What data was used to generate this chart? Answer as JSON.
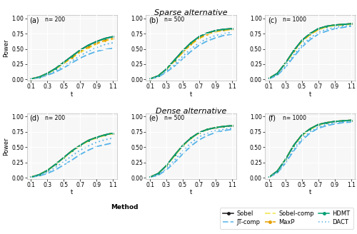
{
  "tau": [
    0.1,
    0.2,
    0.3,
    0.4,
    0.5,
    0.6,
    0.7,
    0.8,
    0.9,
    1.0,
    1.1
  ],
  "sparse": {
    "n200": {
      "Sobel": [
        0.01,
        0.04,
        0.1,
        0.18,
        0.28,
        0.38,
        0.48,
        0.56,
        0.62,
        0.67,
        0.7
      ],
      "JT-comp": [
        0.01,
        0.03,
        0.07,
        0.12,
        0.19,
        0.27,
        0.35,
        0.41,
        0.46,
        0.49,
        0.51
      ],
      "Sobel-comp": [
        0.01,
        0.04,
        0.09,
        0.17,
        0.26,
        0.35,
        0.44,
        0.51,
        0.58,
        0.63,
        0.66
      ],
      "MaxP": [
        0.01,
        0.04,
        0.1,
        0.18,
        0.27,
        0.36,
        0.46,
        0.53,
        0.59,
        0.64,
        0.67
      ],
      "HDMT": [
        0.01,
        0.04,
        0.1,
        0.18,
        0.28,
        0.38,
        0.48,
        0.56,
        0.62,
        0.67,
        0.7
      ],
      "DACT": [
        0.01,
        0.03,
        0.08,
        0.14,
        0.22,
        0.3,
        0.39,
        0.46,
        0.52,
        0.57,
        0.6
      ]
    },
    "n500": {
      "Sobel": [
        0.01,
        0.06,
        0.17,
        0.32,
        0.47,
        0.6,
        0.7,
        0.76,
        0.8,
        0.82,
        0.83
      ],
      "JT-comp": [
        0.01,
        0.04,
        0.12,
        0.22,
        0.34,
        0.46,
        0.56,
        0.63,
        0.68,
        0.72,
        0.74
      ],
      "Sobel-comp": [
        0.01,
        0.06,
        0.16,
        0.3,
        0.44,
        0.57,
        0.67,
        0.73,
        0.78,
        0.8,
        0.82
      ],
      "MaxP": [
        0.01,
        0.06,
        0.17,
        0.31,
        0.45,
        0.58,
        0.68,
        0.74,
        0.79,
        0.81,
        0.82
      ],
      "HDMT": [
        0.01,
        0.06,
        0.17,
        0.32,
        0.47,
        0.6,
        0.7,
        0.76,
        0.8,
        0.82,
        0.83
      ],
      "DACT": [
        0.01,
        0.05,
        0.13,
        0.25,
        0.38,
        0.5,
        0.6,
        0.67,
        0.72,
        0.75,
        0.77
      ]
    },
    "n1000": {
      "Sobel": [
        0.02,
        0.1,
        0.27,
        0.47,
        0.64,
        0.75,
        0.83,
        0.87,
        0.89,
        0.9,
        0.91
      ],
      "JT-comp": [
        0.01,
        0.07,
        0.2,
        0.37,
        0.53,
        0.65,
        0.74,
        0.79,
        0.83,
        0.85,
        0.87
      ],
      "Sobel-comp": [
        0.02,
        0.1,
        0.26,
        0.45,
        0.62,
        0.73,
        0.81,
        0.86,
        0.88,
        0.89,
        0.9
      ],
      "MaxP": [
        0.02,
        0.1,
        0.27,
        0.46,
        0.63,
        0.74,
        0.82,
        0.87,
        0.89,
        0.9,
        0.91
      ],
      "HDMT": [
        0.02,
        0.1,
        0.27,
        0.47,
        0.64,
        0.75,
        0.83,
        0.87,
        0.89,
        0.9,
        0.91
      ],
      "DACT": [
        0.01,
        0.08,
        0.22,
        0.4,
        0.56,
        0.68,
        0.77,
        0.82,
        0.85,
        0.87,
        0.88
      ]
    }
  },
  "dense": {
    "n200": {
      "Sobel": [
        0.01,
        0.05,
        0.12,
        0.22,
        0.33,
        0.44,
        0.53,
        0.61,
        0.66,
        0.7,
        0.73
      ],
      "JT-comp": [
        0.01,
        0.03,
        0.07,
        0.13,
        0.21,
        0.29,
        0.38,
        0.45,
        0.51,
        0.54,
        0.57
      ],
      "Sobel-comp": [
        0.01,
        0.05,
        0.12,
        0.21,
        0.32,
        0.43,
        0.52,
        0.6,
        0.65,
        0.69,
        0.72
      ],
      "MaxP": [
        0.01,
        0.05,
        0.12,
        0.22,
        0.33,
        0.44,
        0.53,
        0.61,
        0.66,
        0.7,
        0.73
      ],
      "HDMT": [
        0.01,
        0.05,
        0.12,
        0.22,
        0.33,
        0.44,
        0.53,
        0.61,
        0.66,
        0.7,
        0.73
      ],
      "DACT": [
        0.01,
        0.04,
        0.09,
        0.17,
        0.26,
        0.36,
        0.45,
        0.52,
        0.58,
        0.62,
        0.65
      ]
    },
    "n500": {
      "Sobel": [
        0.01,
        0.07,
        0.2,
        0.37,
        0.53,
        0.65,
        0.74,
        0.79,
        0.82,
        0.84,
        0.85
      ],
      "JT-comp": [
        0.01,
        0.04,
        0.13,
        0.25,
        0.39,
        0.52,
        0.62,
        0.69,
        0.74,
        0.77,
        0.79
      ],
      "Sobel-comp": [
        0.01,
        0.07,
        0.19,
        0.36,
        0.52,
        0.64,
        0.73,
        0.79,
        0.82,
        0.84,
        0.85
      ],
      "MaxP": [
        0.01,
        0.07,
        0.2,
        0.37,
        0.53,
        0.65,
        0.74,
        0.79,
        0.82,
        0.84,
        0.85
      ],
      "HDMT": [
        0.01,
        0.07,
        0.2,
        0.37,
        0.53,
        0.65,
        0.74,
        0.79,
        0.82,
        0.84,
        0.85
      ],
      "DACT": [
        0.01,
        0.05,
        0.15,
        0.29,
        0.44,
        0.57,
        0.67,
        0.73,
        0.77,
        0.79,
        0.81
      ]
    },
    "n1000": {
      "Sobel": [
        0.01,
        0.11,
        0.3,
        0.53,
        0.7,
        0.8,
        0.87,
        0.9,
        0.92,
        0.93,
        0.94
      ],
      "JT-comp": [
        0.01,
        0.08,
        0.24,
        0.44,
        0.61,
        0.73,
        0.81,
        0.85,
        0.88,
        0.9,
        0.91
      ],
      "Sobel-comp": [
        0.01,
        0.11,
        0.3,
        0.52,
        0.69,
        0.79,
        0.86,
        0.9,
        0.92,
        0.93,
        0.94
      ],
      "MaxP": [
        0.01,
        0.11,
        0.3,
        0.53,
        0.7,
        0.8,
        0.87,
        0.9,
        0.92,
        0.93,
        0.94
      ],
      "HDMT": [
        0.01,
        0.11,
        0.3,
        0.53,
        0.7,
        0.8,
        0.87,
        0.9,
        0.92,
        0.93,
        0.94
      ],
      "DACT": [
        0.01,
        0.09,
        0.26,
        0.47,
        0.64,
        0.75,
        0.83,
        0.87,
        0.9,
        0.91,
        0.92
      ]
    }
  },
  "methods": [
    "Sobel",
    "JT-comp",
    "Sobel-comp",
    "MaxP",
    "HDMT",
    "DACT"
  ],
  "sparse_title": "Sparse alternative",
  "dense_title": "Dense alternative",
  "ylabel": "Power",
  "xlabel": "t",
  "xlim": [
    0.05,
    1.15
  ],
  "ylim": [
    -0.02,
    1.05
  ],
  "yticks": [
    0.0,
    0.25,
    0.5,
    0.75,
    1.0
  ],
  "xticks": [
    0.1,
    0.3,
    0.5,
    0.7,
    0.9,
    1.1
  ],
  "panel_bg": "#f7f7f7",
  "fig_bg": "#ffffff",
  "grid_color": "#ffffff"
}
